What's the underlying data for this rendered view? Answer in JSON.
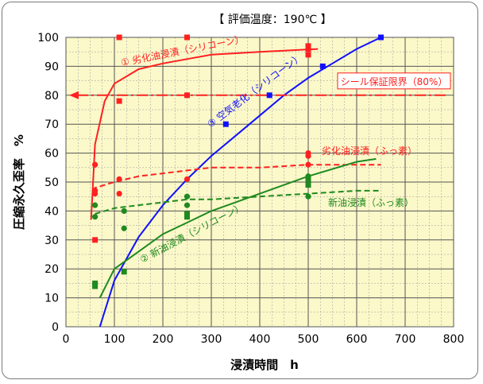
{
  "chart_data": {
    "type": "scatter",
    "title": "【 評価温度：190℃ 】",
    "xlabel": "浸漬時間　h",
    "ylabel": "圧縮永久歪率　%",
    "xlim": [
      0,
      800
    ],
    "ylim": [
      0,
      100
    ],
    "x_ticks": [
      "0",
      "100",
      "200",
      "300",
      "400",
      "500",
      "600",
      "700",
      "800"
    ],
    "y_ticks": [
      "0",
      "10",
      "20",
      "30",
      "40",
      "50",
      "60",
      "70",
      "80",
      "90",
      "100"
    ],
    "grid": true,
    "background": "#fbf8c9",
    "limit_line": {
      "label": "シール保証限界（80%）",
      "y": 80,
      "color": "#ff2020"
    },
    "series": [
      {
        "name": "① 劣化油浸漬（シリコーン）",
        "color": "#ff2020",
        "marker": "square",
        "line": "solid",
        "points": [
          [
            60,
            30
          ],
          [
            110,
            78
          ],
          [
            110,
            100
          ],
          [
            250,
            80
          ],
          [
            250,
            100
          ],
          [
            500,
            94
          ],
          [
            500,
            96
          ],
          [
            500,
            97
          ]
        ],
        "curve": [
          [
            52,
            37
          ],
          [
            60,
            63
          ],
          [
            80,
            78
          ],
          [
            100,
            84
          ],
          [
            150,
            89
          ],
          [
            200,
            91
          ],
          [
            300,
            94
          ],
          [
            400,
            95
          ],
          [
            520,
            96
          ]
        ]
      },
      {
        "name": "③ 空気老化（シリコーン）",
        "color": "#1010ff",
        "marker": "square",
        "line": "solid",
        "points": [
          [
            330,
            70
          ],
          [
            420,
            80
          ],
          [
            530,
            90
          ],
          [
            650,
            100
          ]
        ],
        "curve": [
          [
            70,
            0
          ],
          [
            100,
            16
          ],
          [
            150,
            31
          ],
          [
            200,
            42
          ],
          [
            250,
            51
          ],
          [
            300,
            59
          ],
          [
            350,
            66
          ],
          [
            400,
            73
          ],
          [
            450,
            80
          ],
          [
            500,
            86
          ],
          [
            550,
            91
          ],
          [
            600,
            96
          ],
          [
            650,
            100
          ]
        ]
      },
      {
        "name": "劣化油浸漬（ふっ素）",
        "color": "#ff2020",
        "marker": "circle",
        "line": "dashed",
        "points": [
          [
            60,
            46
          ],
          [
            60,
            47
          ],
          [
            60,
            56
          ],
          [
            110,
            46
          ],
          [
            110,
            51
          ],
          [
            250,
            51
          ],
          [
            500,
            56
          ],
          [
            500,
            59
          ],
          [
            500,
            60
          ]
        ],
        "curve": [
          [
            55,
            47
          ],
          [
            60,
            48
          ],
          [
            100,
            50
          ],
          [
            150,
            52
          ],
          [
            200,
            53
          ],
          [
            250,
            54
          ],
          [
            300,
            55
          ],
          [
            400,
            55
          ],
          [
            500,
            56
          ],
          [
            650,
            56
          ]
        ]
      },
      {
        "name": "② 新油浸漬（シリコーン）",
        "color": "#1f8a1f",
        "marker": "square",
        "line": "solid",
        "points": [
          [
            60,
            14
          ],
          [
            60,
            15
          ],
          [
            120,
            19
          ],
          [
            250,
            38
          ],
          [
            250,
            39
          ],
          [
            500,
            49
          ],
          [
            500,
            51
          ]
        ],
        "curve": [
          [
            70,
            10
          ],
          [
            100,
            20
          ],
          [
            150,
            26
          ],
          [
            200,
            32
          ],
          [
            250,
            36
          ],
          [
            300,
            40
          ],
          [
            400,
            46
          ],
          [
            500,
            52
          ],
          [
            600,
            57
          ],
          [
            640,
            58
          ]
        ]
      },
      {
        "name": "新油浸漬（ふっ素）",
        "color": "#1f8a1f",
        "marker": "circle",
        "line": "dashed",
        "points": [
          [
            60,
            38
          ],
          [
            60,
            42
          ],
          [
            120,
            34
          ],
          [
            120,
            40
          ],
          [
            250,
            42
          ],
          [
            250,
            45
          ],
          [
            500,
            45
          ],
          [
            500,
            52
          ]
        ],
        "curve": [
          [
            60,
            39
          ],
          [
            100,
            41
          ],
          [
            150,
            42
          ],
          [
            200,
            43
          ],
          [
            250,
            44
          ],
          [
            300,
            44
          ],
          [
            400,
            45
          ],
          [
            500,
            46
          ],
          [
            600,
            47
          ],
          [
            650,
            47
          ]
        ]
      }
    ]
  }
}
